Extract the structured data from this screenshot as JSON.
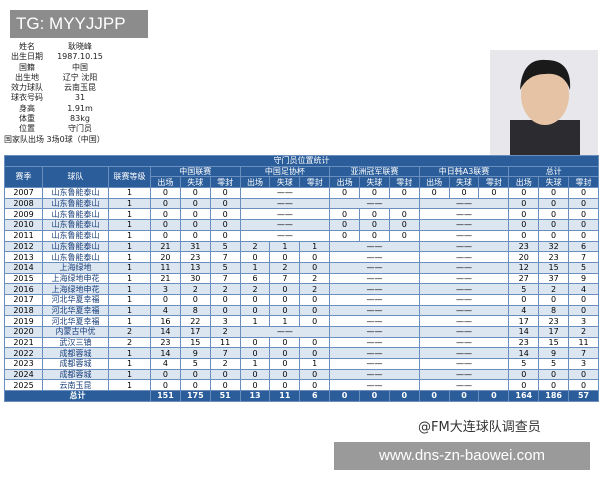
{
  "overlay_tag": "TG: MYYJJPP",
  "profile": [
    {
      "label": "姓名",
      "value": "耿晓峰"
    },
    {
      "label": "出生日期",
      "value": "1987.10.15"
    },
    {
      "label": "国籍",
      "value": "中国"
    },
    {
      "label": "出生地",
      "value": "辽宁 沈阳"
    },
    {
      "label": "效力球队",
      "value": "云南玉昆"
    },
    {
      "label": "球衣号码",
      "value": "31"
    },
    {
      "label": "身高",
      "value": "1.91m"
    },
    {
      "label": "体重",
      "value": "83kg"
    },
    {
      "label": "位置",
      "value": "守门员"
    }
  ],
  "caps": {
    "label": "国家队出场",
    "value": "3场0球（中国）"
  },
  "table": {
    "title": "守门员位置统计",
    "headers": [
      "赛季",
      "球队",
      "联赛等级"
    ],
    "groups": [
      "中国联赛",
      "中国足协杯",
      "亚洲冠军联赛",
      "中日韩A3联赛",
      "总计"
    ],
    "subheaders": [
      "出场",
      "失球",
      "零封"
    ],
    "rows": [
      [
        "2007",
        "山东鲁能泰山",
        "1",
        [
          0,
          0,
          0
        ],
        "——",
        [
          0,
          0,
          0
        ],
        [
          0,
          0,
          0
        ],
        [
          0,
          0,
          0
        ]
      ],
      [
        "2008",
        "山东鲁能泰山",
        "1",
        [
          0,
          0,
          0
        ],
        "——",
        "——",
        "——",
        [
          0,
          0,
          0
        ]
      ],
      [
        "2009",
        "山东鲁能泰山",
        "1",
        [
          0,
          0,
          0
        ],
        "——",
        [
          0,
          0,
          0
        ],
        "——",
        [
          0,
          0,
          0
        ]
      ],
      [
        "2010",
        "山东鲁能泰山",
        "1",
        [
          0,
          0,
          0
        ],
        "——",
        [
          0,
          0,
          0
        ],
        "——",
        [
          0,
          0,
          0
        ]
      ],
      [
        "2011",
        "山东鲁能泰山",
        "1",
        [
          0,
          0,
          0
        ],
        "——",
        [
          0,
          0,
          0
        ],
        "——",
        [
          0,
          0,
          0
        ]
      ],
      [
        "2012",
        "山东鲁能泰山",
        "1",
        [
          21,
          31,
          5
        ],
        [
          2,
          1,
          1
        ],
        "——",
        "——",
        [
          23,
          32,
          6
        ]
      ],
      [
        "2013",
        "山东鲁能泰山",
        "1",
        [
          20,
          23,
          7
        ],
        [
          0,
          0,
          0
        ],
        "——",
        "——",
        [
          20,
          23,
          7
        ]
      ],
      [
        "2014",
        "上海绿地",
        "1",
        [
          11,
          13,
          5
        ],
        [
          1,
          2,
          0
        ],
        "——",
        "——",
        [
          12,
          15,
          5
        ]
      ],
      [
        "2015",
        "上海绿地申花",
        "1",
        [
          21,
          30,
          7
        ],
        [
          6,
          7,
          2
        ],
        "——",
        "——",
        [
          27,
          37,
          9
        ]
      ],
      [
        "2016",
        "上海绿地申花",
        "1",
        [
          3,
          2,
          2
        ],
        [
          2,
          0,
          2
        ],
        "——",
        "——",
        [
          5,
          2,
          4
        ]
      ],
      [
        "2017",
        "河北华夏幸福",
        "1",
        [
          0,
          0,
          0
        ],
        [
          0,
          0,
          0
        ],
        "——",
        "——",
        [
          0,
          0,
          0
        ]
      ],
      [
        "2018",
        "河北华夏幸福",
        "1",
        [
          4,
          8,
          0
        ],
        [
          0,
          0,
          0
        ],
        "——",
        "——",
        [
          4,
          8,
          0
        ]
      ],
      [
        "2019",
        "河北华夏幸福",
        "1",
        [
          16,
          22,
          3
        ],
        [
          1,
          1,
          0
        ],
        "——",
        "——",
        [
          17,
          23,
          3
        ]
      ],
      [
        "2020",
        "内蒙古中优",
        "2",
        [
          14,
          17,
          2
        ],
        "——",
        "——",
        "——",
        [
          14,
          17,
          2
        ]
      ],
      [
        "2021",
        "武汉三镇",
        "2",
        [
          23,
          15,
          11
        ],
        [
          0,
          0,
          0
        ],
        "——",
        "——",
        [
          23,
          15,
          11
        ]
      ],
      [
        "2022",
        "成都蓉城",
        "1",
        [
          14,
          9,
          7
        ],
        [
          0,
          0,
          0
        ],
        "——",
        "——",
        [
          14,
          9,
          7
        ]
      ],
      [
        "2023",
        "成都蓉城",
        "1",
        [
          4,
          5,
          2
        ],
        [
          1,
          0,
          1
        ],
        "——",
        "——",
        [
          5,
          5,
          3
        ]
      ],
      [
        "2024",
        "成都蓉城",
        "1",
        [
          0,
          0,
          0
        ],
        [
          0,
          0,
          0
        ],
        "——",
        "——",
        [
          0,
          0,
          0
        ]
      ],
      [
        "2025",
        "云南玉昆",
        "1",
        [
          0,
          0,
          0
        ],
        [
          0,
          0,
          0
        ],
        "——",
        "——",
        [
          0,
          0,
          0
        ]
      ]
    ],
    "total": [
      "总计",
      [
        151,
        175,
        51
      ],
      [
        13,
        11,
        6
      ],
      [
        0,
        0,
        0
      ],
      [
        0,
        0,
        0
      ],
      [
        164,
        186,
        57
      ]
    ]
  },
  "watermark": "@FM大连球队调查员",
  "footer_url": "www.dns-zn-baowei.com"
}
